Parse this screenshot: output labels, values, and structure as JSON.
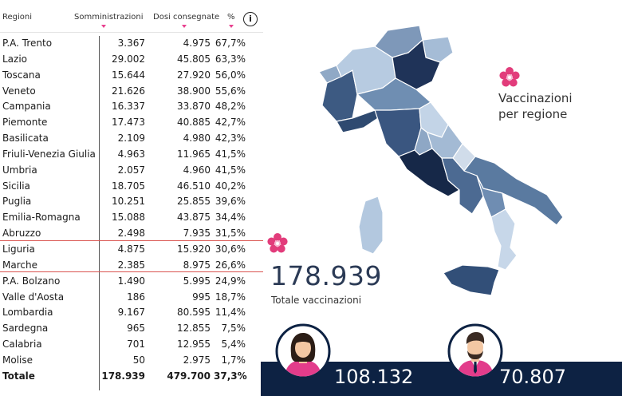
{
  "table": {
    "headers": {
      "region": "Regioni",
      "administrations": "Somministrazioni",
      "delivered": "Dosi consegnate",
      "percent": "%"
    },
    "info_label": "i",
    "rows": [
      {
        "region": "P.A. Trento",
        "administrations": "3.367",
        "delivered": "4.975",
        "percent": "67,7%"
      },
      {
        "region": "Lazio",
        "administrations": "29.002",
        "delivered": "45.805",
        "percent": "63,3%"
      },
      {
        "region": "Toscana",
        "administrations": "15.644",
        "delivered": "27.920",
        "percent": "56,0%"
      },
      {
        "region": "Veneto",
        "administrations": "21.626",
        "delivered": "38.900",
        "percent": "55,6%"
      },
      {
        "region": "Campania",
        "administrations": "16.337",
        "delivered": "33.870",
        "percent": "48,2%"
      },
      {
        "region": "Piemonte",
        "administrations": "17.473",
        "delivered": "40.885",
        "percent": "42,7%"
      },
      {
        "region": "Basilicata",
        "administrations": "2.109",
        "delivered": "4.980",
        "percent": "42,3%"
      },
      {
        "region": "Friuli-Venezia Giulia",
        "administrations": "4.963",
        "delivered": "11.965",
        "percent": "41,5%"
      },
      {
        "region": "Umbria",
        "administrations": "2.057",
        "delivered": "4.960",
        "percent": "41,5%"
      },
      {
        "region": "Sicilia",
        "administrations": "18.705",
        "delivered": "46.510",
        "percent": "40,2%"
      },
      {
        "region": "Puglia",
        "administrations": "10.251",
        "delivered": "25.855",
        "percent": "39,6%"
      },
      {
        "region": "Emilia-Romagna",
        "administrations": "15.088",
        "delivered": "43.875",
        "percent": "34,4%"
      },
      {
        "region": "Abruzzo",
        "administrations": "2.498",
        "delivered": "7.935",
        "percent": "31,5%"
      },
      {
        "region": "Liguria",
        "administrations": "4.875",
        "delivered": "15.920",
        "percent": "30,6%"
      },
      {
        "region": "Marche",
        "administrations": "2.385",
        "delivered": "8.975",
        "percent": "26,6%"
      },
      {
        "region": "P.A. Bolzano",
        "administrations": "1.490",
        "delivered": "5.995",
        "percent": "24,9%"
      },
      {
        "region": "Valle d'Aosta",
        "administrations": "186",
        "delivered": "995",
        "percent": "18,7%"
      },
      {
        "region": "Lombardia",
        "administrations": "9.167",
        "delivered": "80.595",
        "percent": "11,4%"
      },
      {
        "region": "Sardegna",
        "administrations": "965",
        "delivered": "12.855",
        "percent": "7,5%"
      },
      {
        "region": "Calabria",
        "administrations": "701",
        "delivered": "12.955",
        "percent": "5,4%"
      },
      {
        "region": "Molise",
        "administrations": "50",
        "delivered": "2.975",
        "percent": "1,7%"
      }
    ],
    "total": {
      "region": "Totale",
      "administrations": "178.939",
      "delivered": "479.700",
      "percent": "37,3%"
    }
  },
  "map_panel": {
    "subtitle_line1": "Vaccinazioni",
    "subtitle_line2": "per regione",
    "flower_icon": "primrose-flower-icon"
  },
  "totals": {
    "total_value": "178.939",
    "total_label": "Totale vaccinazioni",
    "women_value": "108.132",
    "men_value": "70.807",
    "women_icon": "woman-avatar-icon",
    "men_icon": "man-avatar-icon"
  },
  "colors": {
    "accent_pink": "#e8408f",
    "navy": "#0d2243",
    "map_dark": "#1f3358",
    "map_mid": "#5f7ea3",
    "map_light": "#b7cbe1"
  }
}
